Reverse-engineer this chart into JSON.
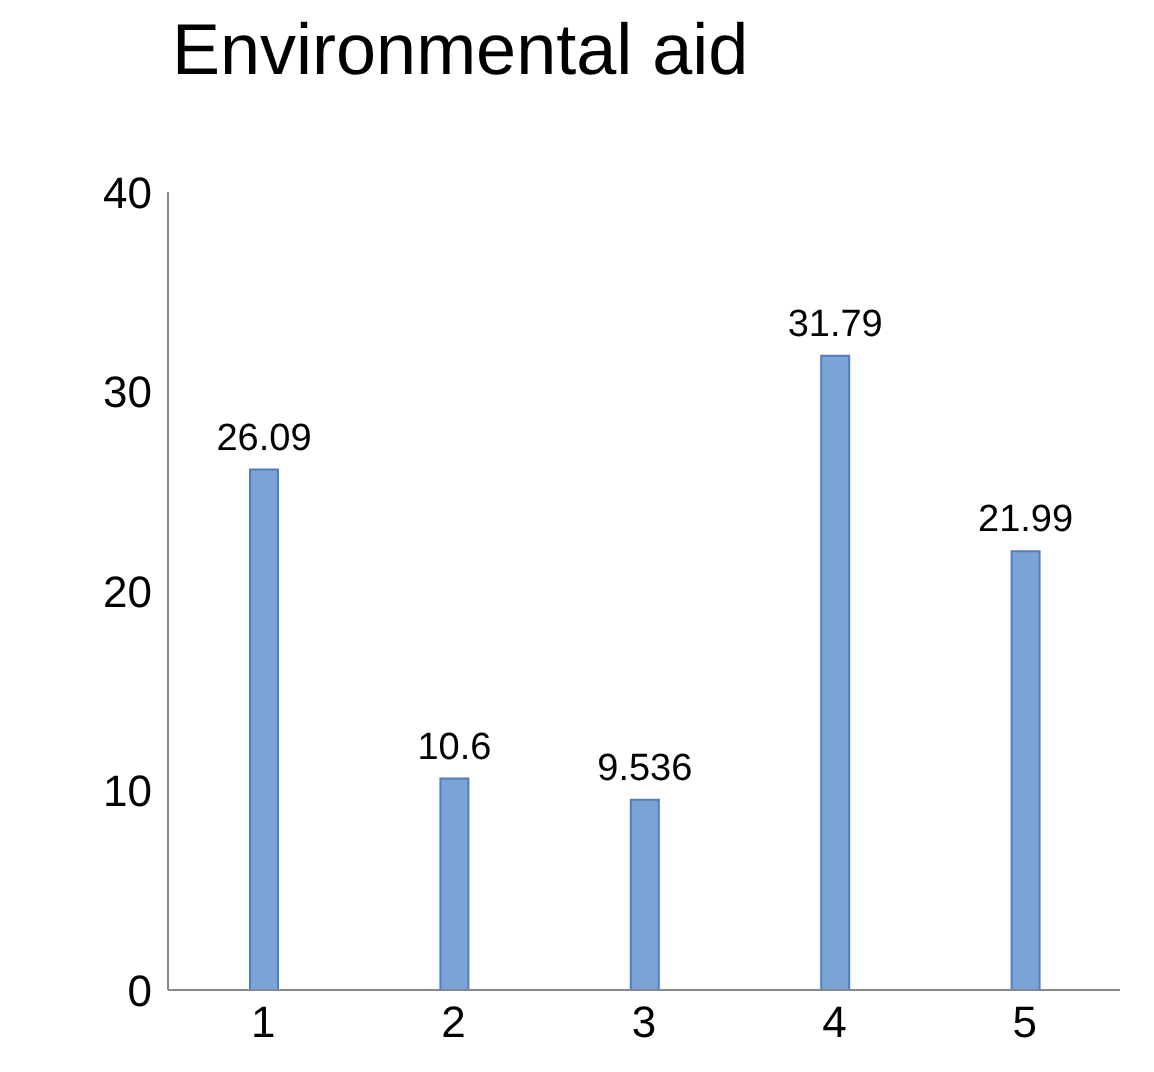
{
  "chart_data": {
    "type": "bar",
    "title": "Environmental aid",
    "categories": [
      "1",
      "2",
      "3",
      "4",
      "5"
    ],
    "values": [
      26.09,
      10.6,
      9.536,
      31.79,
      21.99
    ],
    "color": "#7ba3d6",
    "ylim": [
      0,
      40
    ],
    "yticks": [
      0,
      10,
      20,
      30,
      40
    ],
    "data_labels": true
  }
}
